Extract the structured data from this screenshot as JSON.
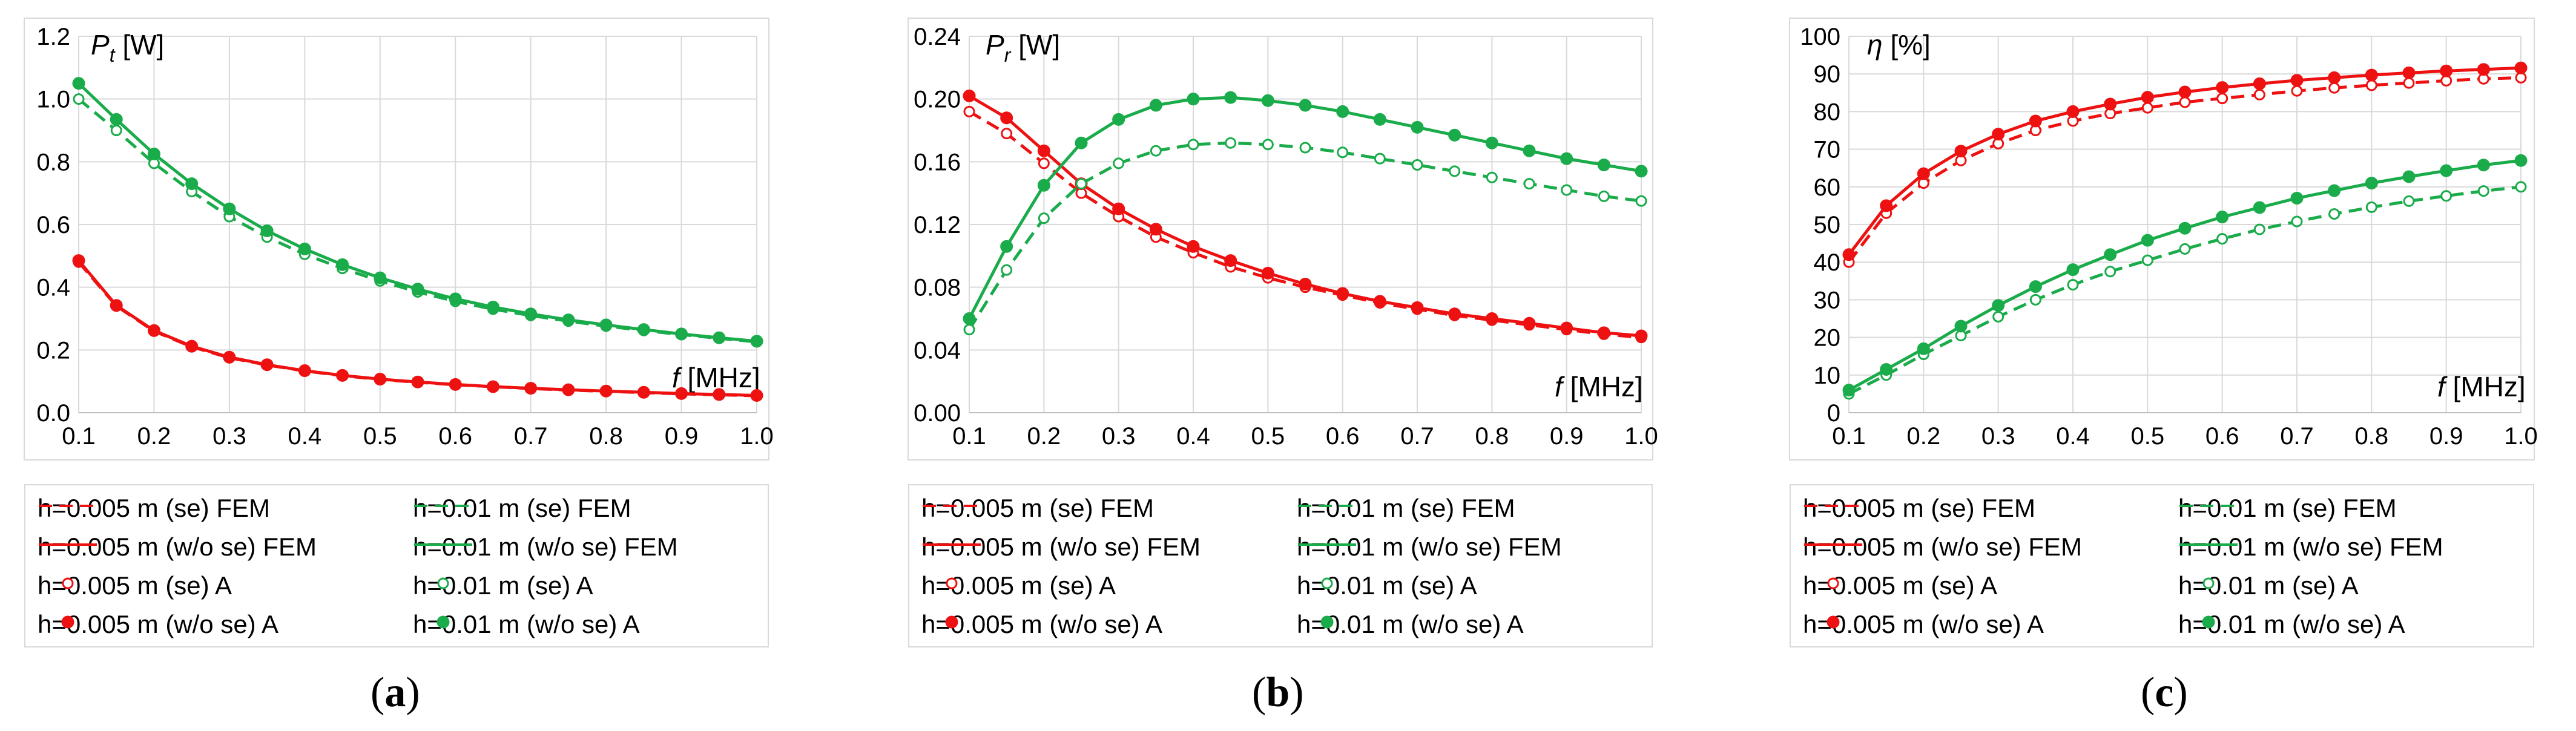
{
  "colors": {
    "red": "#ee1111",
    "green": "#1aab4a",
    "grid": "#d9d9d9",
    "axis": "#bfbfbf"
  },
  "x": [
    0.1,
    0.15,
    0.2,
    0.25,
    0.3,
    0.35,
    0.4,
    0.45,
    0.5,
    0.55,
    0.6,
    0.65,
    0.7,
    0.75,
    0.8,
    0.85,
    0.9,
    0.95,
    1.0
  ],
  "legend": [
    "h=0.005 m (se) FEM",
    "h=0.01 m (se) FEM",
    "h=0.005 m (w/o se) FEM",
    "h=0.01 m (w/o se) FEM",
    "h=0.005 m (se) A",
    "h=0.01 m (se) A",
    "h=0.005 m (w/o se) A",
    "h=0.01 m (w/o se) A"
  ],
  "chart_data": [
    {
      "type": "line",
      "caption_letter": "a",
      "ylabel_main": "P",
      "ylabel_sub": "t",
      "ylabel_unit": " [W]",
      "xlabel_main": "f",
      "xlabel_unit": " [MHz]",
      "xlim": [
        0.1,
        1.0
      ],
      "ylim": [
        0.0,
        1.2
      ],
      "yticks": [
        "0.0",
        "0.2",
        "0.4",
        "0.6",
        "0.8",
        "1.0",
        "1.2"
      ],
      "xticks": [
        "0.1",
        "0.2",
        "0.3",
        "0.4",
        "0.5",
        "0.6",
        "0.7",
        "0.8",
        "0.9",
        "1.0"
      ],
      "series": [
        {
          "name": "h=0.005 m (se)",
          "values": [
            0.48,
            0.34,
            0.26,
            0.21,
            0.175,
            0.152,
            0.133,
            0.118,
            0.106,
            0.097,
            0.089,
            0.083,
            0.077,
            0.072,
            0.068,
            0.064,
            0.06,
            0.057,
            0.054
          ]
        },
        {
          "name": "h=0.005 m (w/o se)",
          "values": [
            0.485,
            0.342,
            0.262,
            0.212,
            0.177,
            0.153,
            0.134,
            0.119,
            0.107,
            0.098,
            0.09,
            0.083,
            0.078,
            0.073,
            0.069,
            0.065,
            0.061,
            0.058,
            0.055
          ]
        },
        {
          "name": "h=0.01 m (se)",
          "values": [
            1.0,
            0.9,
            0.795,
            0.705,
            0.625,
            0.56,
            0.505,
            0.46,
            0.42,
            0.385,
            0.355,
            0.33,
            0.31,
            0.292,
            0.276,
            0.262,
            0.249,
            0.237,
            0.226
          ]
        },
        {
          "name": "h=0.01 m (w/o se)",
          "values": [
            1.05,
            0.935,
            0.825,
            0.73,
            0.65,
            0.58,
            0.522,
            0.472,
            0.43,
            0.394,
            0.363,
            0.337,
            0.315,
            0.296,
            0.28,
            0.265,
            0.251,
            0.239,
            0.228
          ]
        }
      ]
    },
    {
      "type": "line",
      "caption_letter": "b",
      "ylabel_main": "P",
      "ylabel_sub": "r",
      "ylabel_unit": " [W]",
      "xlabel_main": "f",
      "xlabel_unit": " [MHz]",
      "xlim": [
        0.1,
        1.0
      ],
      "ylim": [
        0.0,
        0.24
      ],
      "yticks": [
        "0.00",
        "0.04",
        "0.08",
        "0.12",
        "0.16",
        "0.20",
        "0.24"
      ],
      "xticks": [
        "0.1",
        "0.2",
        "0.3",
        "0.4",
        "0.5",
        "0.6",
        "0.7",
        "0.8",
        "0.9",
        "1.0"
      ],
      "series": [
        {
          "name": "h=0.005 m (se)",
          "values": [
            0.192,
            0.178,
            0.159,
            0.14,
            0.125,
            0.112,
            0.102,
            0.093,
            0.086,
            0.08,
            0.075,
            0.07,
            0.066,
            0.062,
            0.059,
            0.056,
            0.053,
            0.05,
            0.048
          ]
        },
        {
          "name": "h=0.005 m (w/o se)",
          "values": [
            0.202,
            0.188,
            0.167,
            0.146,
            0.13,
            0.117,
            0.106,
            0.097,
            0.089,
            0.082,
            0.076,
            0.071,
            0.067,
            0.063,
            0.06,
            0.057,
            0.054,
            0.051,
            0.049
          ]
        },
        {
          "name": "h=0.01 m (se)",
          "values": [
            0.053,
            0.091,
            0.124,
            0.146,
            0.159,
            0.167,
            0.171,
            0.172,
            0.171,
            0.169,
            0.166,
            0.162,
            0.158,
            0.154,
            0.15,
            0.146,
            0.142,
            0.138,
            0.135
          ]
        },
        {
          "name": "h=0.01 m (w/o se)",
          "values": [
            0.06,
            0.106,
            0.145,
            0.172,
            0.187,
            0.196,
            0.2,
            0.201,
            0.199,
            0.196,
            0.192,
            0.187,
            0.182,
            0.177,
            0.172,
            0.167,
            0.162,
            0.158,
            0.154
          ]
        }
      ]
    },
    {
      "type": "line",
      "caption_letter": "c",
      "ylabel_main": "η",
      "ylabel_sub": "",
      "ylabel_unit": " [%]",
      "xlabel_main": "f",
      "xlabel_unit": " [MHz]",
      "xlim": [
        0.1,
        1.0
      ],
      "ylim": [
        0,
        100
      ],
      "yticks": [
        "0",
        "10",
        "20",
        "30",
        "40",
        "50",
        "60",
        "70",
        "80",
        "90",
        "100"
      ],
      "xticks": [
        "0.1",
        "0.2",
        "0.3",
        "0.4",
        "0.5",
        "0.6",
        "0.7",
        "0.8",
        "0.9",
        "1.0"
      ],
      "series": [
        {
          "name": "h=0.005 m (se)",
          "values": [
            40,
            53,
            61,
            67,
            71.5,
            75,
            77.5,
            79.5,
            81,
            82.5,
            83.5,
            84.5,
            85.5,
            86.3,
            87,
            87.6,
            88.2,
            88.7,
            89
          ]
        },
        {
          "name": "h=0.005 m (w/o se)",
          "values": [
            42,
            55,
            63.5,
            69.5,
            74,
            77.5,
            80,
            82,
            83.8,
            85.2,
            86.4,
            87.4,
            88.3,
            89,
            89.7,
            90.3,
            90.8,
            91.2,
            91.6
          ]
        },
        {
          "name": "h=0.01 m (se)",
          "values": [
            5,
            10,
            15.5,
            20.5,
            25.5,
            30,
            34,
            37.5,
            40.5,
            43.5,
            46.2,
            48.7,
            50.8,
            52.8,
            54.6,
            56.2,
            57.6,
            58.9,
            60
          ]
        },
        {
          "name": "h=0.01 m (w/o se)",
          "values": [
            6,
            11.5,
            17,
            23,
            28.5,
            33.5,
            38,
            42,
            45.8,
            49,
            52,
            54.5,
            57,
            59,
            61,
            62.7,
            64.3,
            65.8,
            67
          ]
        }
      ]
    }
  ]
}
